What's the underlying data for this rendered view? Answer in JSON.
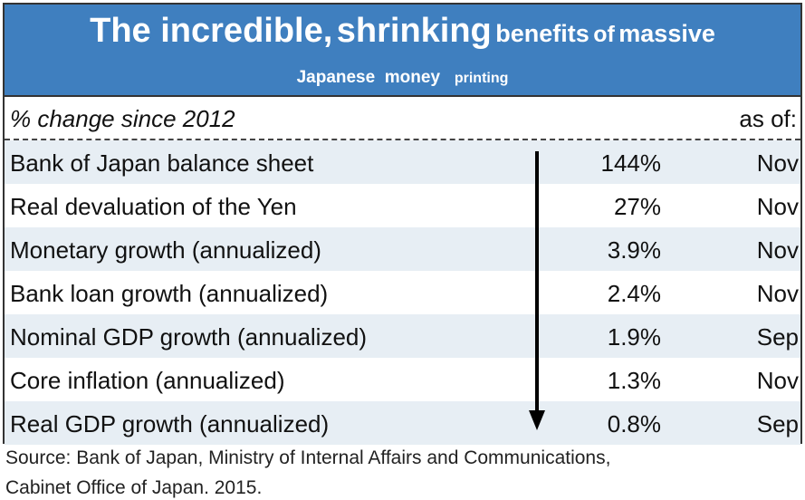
{
  "title": {
    "part1": "The incredible,",
    "part2": "shrinking",
    "part3": "benefits",
    "part4": "of",
    "part5": "massive",
    "line2a": "Japanese",
    "line2b": "money",
    "line2c": "printing"
  },
  "colors": {
    "header": "#3f7fbf",
    "row_alt": "#e7eef4"
  },
  "chart_data": {
    "type": "table",
    "title": "The incredible, shrinking benefits of massive Japanese money printing",
    "columns": [
      "% change since 2012",
      "",
      "as of:"
    ],
    "rows": [
      {
        "label": "Bank of Japan balance sheet",
        "value": "144%",
        "as_of": "Nov"
      },
      {
        "label": "Real devaluation of the Yen",
        "value": "27%",
        "as_of": "Nov"
      },
      {
        "label": "Monetary growth (annualized)",
        "value": "3.9%",
        "as_of": "Nov"
      },
      {
        "label": "Bank loan growth (annualized)",
        "value": "2.4%",
        "as_of": "Nov"
      },
      {
        "label": "Nominal GDP growth (annualized)",
        "value": "1.9%",
        "as_of": "Sep"
      },
      {
        "label": "Core inflation (annualized)",
        "value": "1.3%",
        "as_of": "Nov"
      },
      {
        "label": "Real GDP growth (annualized)",
        "value": "0.8%",
        "as_of": "Sep"
      }
    ]
  },
  "source": {
    "line1": "Source: Bank of Japan, Ministry of Internal Affairs and Communications,",
    "line2": "Cabinet Office of Japan. 2015."
  }
}
